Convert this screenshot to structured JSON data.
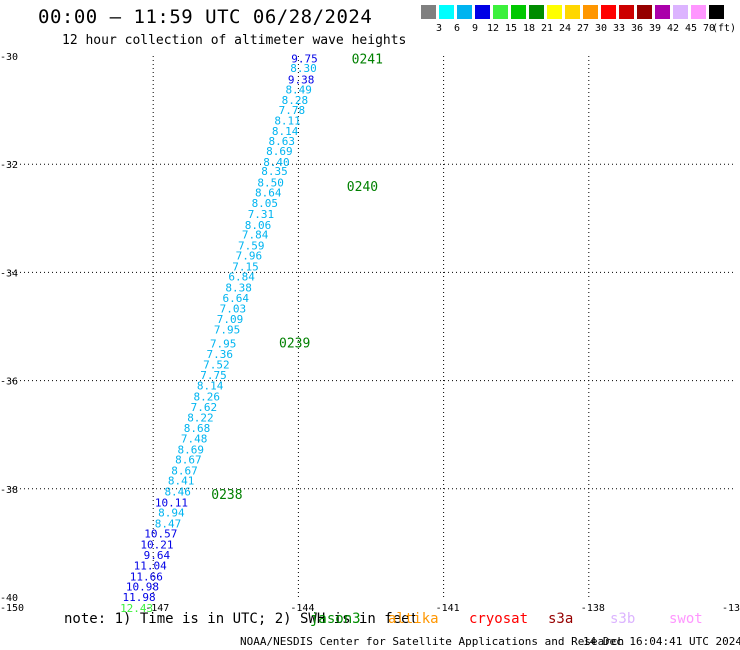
{
  "header": {
    "title": "00:00 – 11:59 UTC 06/28/2024",
    "subtitle": "12 hour collection of altimeter wave heights"
  },
  "legend": {
    "unit": "(ft)",
    "bins": [
      {
        "label": "",
        "color": "#808080"
      },
      {
        "label": "3",
        "color": "#00ffff"
      },
      {
        "label": "6",
        "color": "#00b4f0"
      },
      {
        "label": "9",
        "color": "#0000e6"
      },
      {
        "label": "12",
        "color": "#3cf03c"
      },
      {
        "label": "15",
        "color": "#00c800"
      },
      {
        "label": "18",
        "color": "#008c00"
      },
      {
        "label": "21",
        "color": "#ffff00"
      },
      {
        "label": "24",
        "color": "#ffd700"
      },
      {
        "label": "27",
        "color": "#ff9600"
      },
      {
        "label": "30",
        "color": "#ff0000"
      },
      {
        "label": "33",
        "color": "#cd0000"
      },
      {
        "label": "36",
        "color": "#960000"
      },
      {
        "label": "39",
        "color": "#aa00aa"
      },
      {
        "label": "42",
        "color": "#dcb4ff"
      },
      {
        "label": "45",
        "color": "#ff96ff"
      },
      {
        "label": "70",
        "color": "#000000"
      }
    ]
  },
  "axes": {
    "lon_labels": [
      "-150",
      "-147",
      "-144",
      "-141",
      "-138",
      "-13"
    ],
    "lat_labels": [
      "-30",
      "-32",
      "-34",
      "-36",
      "-38",
      "-40"
    ]
  },
  "chart_data": {
    "type": "scatter",
    "xlim": [
      -150,
      -135
    ],
    "ylim": [
      -40,
      -30
    ],
    "grid": true,
    "observations": [
      {
        "lon": -143.6,
        "lat": -30.05,
        "swh": "9.75",
        "color": "#0000e6"
      },
      {
        "lon": -143.62,
        "lat": -30.22,
        "swh": "8.30",
        "color": "#00b4f0"
      },
      {
        "lon": -143.67,
        "lat": -30.43,
        "swh": "9.38",
        "color": "#0000e6"
      },
      {
        "lon": -143.72,
        "lat": -30.62,
        "swh": "8.49",
        "color": "#00b4f0"
      },
      {
        "lon": -143.8,
        "lat": -30.81,
        "swh": "8.28",
        "color": "#00b4f0"
      },
      {
        "lon": -143.86,
        "lat": -31.0,
        "swh": "7.78",
        "color": "#00b4f0"
      },
      {
        "lon": -143.95,
        "lat": -31.19,
        "swh": "8.11",
        "color": "#00b4f0"
      },
      {
        "lon": -144.0,
        "lat": -31.39,
        "swh": "8.14",
        "color": "#00b4f0"
      },
      {
        "lon": -144.07,
        "lat": -31.57,
        "swh": "8.63",
        "color": "#00b4f0"
      },
      {
        "lon": -144.12,
        "lat": -31.76,
        "swh": "8.69",
        "color": "#00b4f0"
      },
      {
        "lon": -144.18,
        "lat": -31.96,
        "swh": "8.40",
        "color": "#00b4f0"
      },
      {
        "lon": -144.22,
        "lat": -32.13,
        "swh": "8.35",
        "color": "#00b4f0"
      },
      {
        "lon": -144.3,
        "lat": -32.34,
        "swh": "8.50",
        "color": "#00b4f0"
      },
      {
        "lon": -144.35,
        "lat": -32.52,
        "swh": "8.64",
        "color": "#00b4f0"
      },
      {
        "lon": -144.42,
        "lat": -32.72,
        "swh": "8.05",
        "color": "#00b4f0"
      },
      {
        "lon": -144.5,
        "lat": -32.92,
        "swh": "7.31",
        "color": "#00b4f0"
      },
      {
        "lon": -144.56,
        "lat": -33.12,
        "swh": "8.06",
        "color": "#00b4f0"
      },
      {
        "lon": -144.62,
        "lat": -33.3,
        "swh": "7.84",
        "color": "#00b4f0"
      },
      {
        "lon": -144.7,
        "lat": -33.5,
        "swh": "7.59",
        "color": "#00b4f0"
      },
      {
        "lon": -144.75,
        "lat": -33.69,
        "swh": "7.96",
        "color": "#00b4f0"
      },
      {
        "lon": -144.82,
        "lat": -33.89,
        "swh": "7.15",
        "color": "#00b4f0"
      },
      {
        "lon": -144.9,
        "lat": -34.08,
        "swh": "6.84",
        "color": "#00b4f0"
      },
      {
        "lon": -144.96,
        "lat": -34.28,
        "swh": "8.38",
        "color": "#00b4f0"
      },
      {
        "lon": -145.02,
        "lat": -34.47,
        "swh": "6.64",
        "color": "#00b4f0"
      },
      {
        "lon": -145.08,
        "lat": -34.67,
        "swh": "7.03",
        "color": "#00b4f0"
      },
      {
        "lon": -145.14,
        "lat": -34.86,
        "swh": "7.09",
        "color": "#00b4f0"
      },
      {
        "lon": -145.2,
        "lat": -35.06,
        "swh": "7.95",
        "color": "#00b4f0"
      },
      {
        "lon": -145.28,
        "lat": -35.31,
        "swh": "7.95",
        "color": "#00b4f0"
      },
      {
        "lon": -145.35,
        "lat": -35.51,
        "swh": "7.36",
        "color": "#00b4f0"
      },
      {
        "lon": -145.42,
        "lat": -35.7,
        "swh": "7.52",
        "color": "#00b4f0"
      },
      {
        "lon": -145.48,
        "lat": -35.9,
        "swh": "7.75",
        "color": "#00b4f0"
      },
      {
        "lon": -145.55,
        "lat": -36.09,
        "swh": "8.14",
        "color": "#00b4f0"
      },
      {
        "lon": -145.62,
        "lat": -36.29,
        "swh": "8.26",
        "color": "#00b4f0"
      },
      {
        "lon": -145.68,
        "lat": -36.49,
        "swh": "7.62",
        "color": "#00b4f0"
      },
      {
        "lon": -145.75,
        "lat": -36.68,
        "swh": "8.22",
        "color": "#00b4f0"
      },
      {
        "lon": -145.82,
        "lat": -36.88,
        "swh": "8.68",
        "color": "#00b4f0"
      },
      {
        "lon": -145.88,
        "lat": -37.07,
        "swh": "7.48",
        "color": "#00b4f0"
      },
      {
        "lon": -145.95,
        "lat": -37.27,
        "swh": "8.69",
        "color": "#00b4f0"
      },
      {
        "lon": -146.0,
        "lat": -37.46,
        "swh": "8.67",
        "color": "#00b4f0"
      },
      {
        "lon": -146.08,
        "lat": -37.66,
        "swh": "8.67",
        "color": "#00b4f0"
      },
      {
        "lon": -146.15,
        "lat": -37.85,
        "swh": "8.41",
        "color": "#00b4f0"
      },
      {
        "lon": -146.22,
        "lat": -38.05,
        "swh": "8.46",
        "color": "#00b4f0"
      },
      {
        "lon": -146.28,
        "lat": -38.25,
        "swh": "10.11",
        "color": "#0000e6"
      },
      {
        "lon": -146.35,
        "lat": -38.44,
        "swh": "8.94",
        "color": "#00b4f0"
      },
      {
        "lon": -146.42,
        "lat": -38.64,
        "swh": "8.47",
        "color": "#00b4f0"
      },
      {
        "lon": -146.5,
        "lat": -38.83,
        "swh": "10.57",
        "color": "#0000e6"
      },
      {
        "lon": -146.58,
        "lat": -39.03,
        "swh": "10.21",
        "color": "#0000e6"
      },
      {
        "lon": -146.65,
        "lat": -39.22,
        "swh": "9.64",
        "color": "#0000e6"
      },
      {
        "lon": -146.72,
        "lat": -39.42,
        "swh": "11.04",
        "color": "#0000e6"
      },
      {
        "lon": -146.8,
        "lat": -39.62,
        "swh": "11.66",
        "color": "#0000e6"
      },
      {
        "lon": -146.88,
        "lat": -39.81,
        "swh": "10.98",
        "color": "#0000e6"
      },
      {
        "lon": -146.95,
        "lat": -40.0,
        "swh": "11.98",
        "color": "#0000e6"
      },
      {
        "lon": -147.0,
        "lat": -40.2,
        "swh": "12.43",
        "color": "#3cf03c"
      }
    ],
    "passes": [
      {
        "label": "0241",
        "lon": -142.9,
        "lat": -30.05
      },
      {
        "label": "0240",
        "lon": -143.0,
        "lat": -32.4
      },
      {
        "label": "0239",
        "lon": -144.4,
        "lat": -35.3
      },
      {
        "label": "0238",
        "lon": -145.8,
        "lat": -38.1
      }
    ]
  },
  "footer": {
    "note": "note:  1) Time is in UTC;  2) SWH is in feet",
    "satellites": [
      {
        "name": "jason3",
        "color": "#008c00"
      },
      {
        "name": "altika",
        "color": "#ff9600"
      },
      {
        "name": "cryosat",
        "color": "#ff0000"
      },
      {
        "name": "s3a",
        "color": "#960000"
      },
      {
        "name": "s3b",
        "color": "#dcb4ff"
      },
      {
        "name": "swot",
        "color": "#ff96ff"
      }
    ],
    "credit": "NOAA/NESDIS Center for Satellite Applications and Research",
    "generated": "14 Dec 16:04:41 UTC 2024"
  }
}
